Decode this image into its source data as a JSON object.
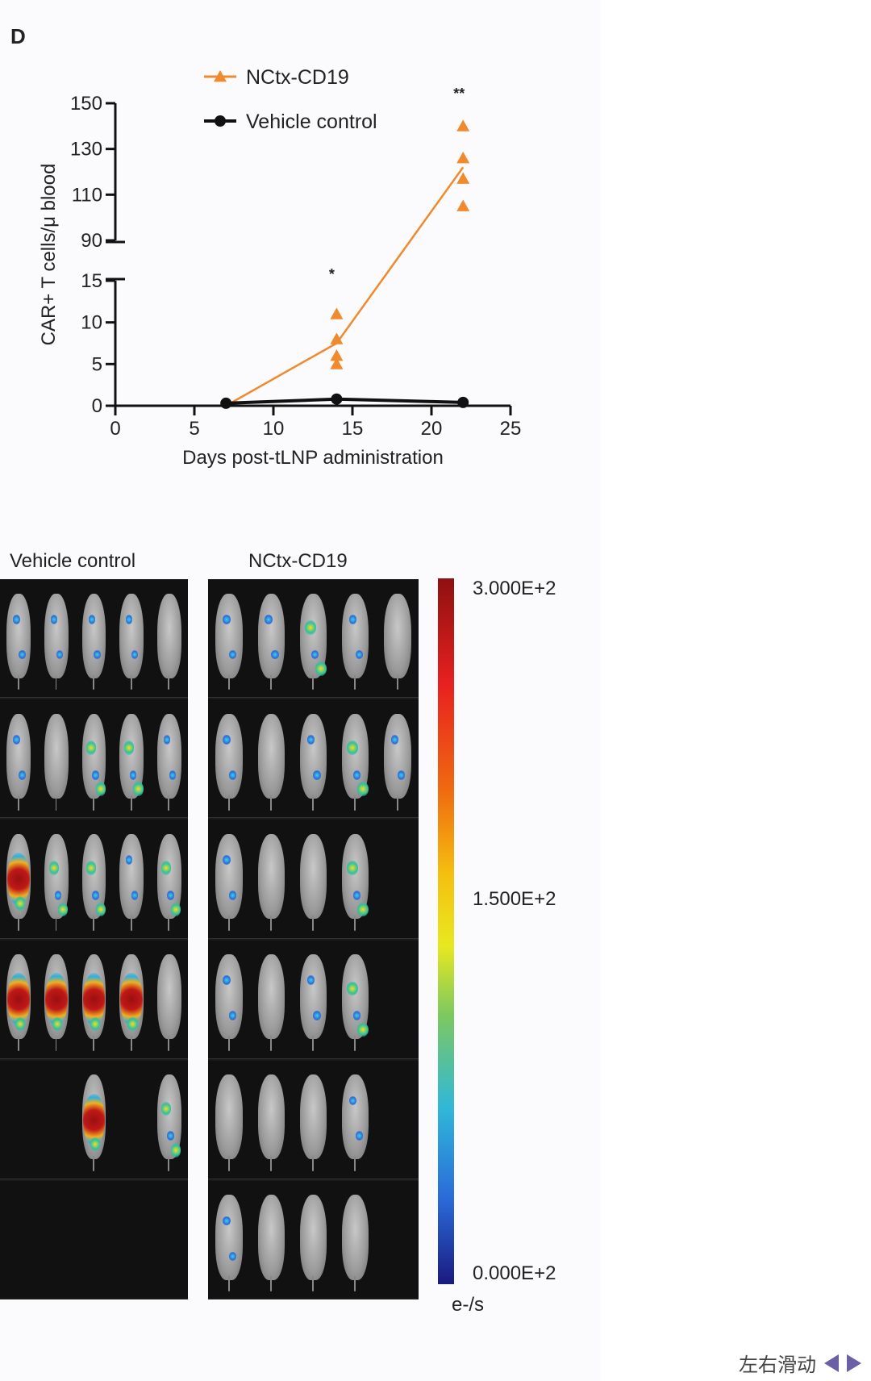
{
  "panel_letter": "D",
  "chart_data": {
    "type": "scatter",
    "xlabel": "Days post-tLNP administration",
    "ylabel": "CAR+ T cells/μ blood",
    "xlim": [
      0,
      25
    ],
    "x_ticks": [
      "0",
      "5",
      "10",
      "15",
      "20",
      "25"
    ],
    "y_ticks_lower": [
      "0",
      "5",
      "10",
      "15"
    ],
    "y_ticks_upper": [
      "90",
      "110",
      "130",
      "150"
    ],
    "y_axis_break": "between 15 and 90",
    "legend_position": "top",
    "series": [
      {
        "name": "NCtx-CD19",
        "color": "#f08a2c",
        "marker": "triangle",
        "points": [
          {
            "x": 14,
            "y": 11
          },
          {
            "x": 14,
            "y": 8
          },
          {
            "x": 14,
            "y": 6
          },
          {
            "x": 14,
            "y": 5
          },
          {
            "x": 22,
            "y": 140
          },
          {
            "x": 22,
            "y": 126
          },
          {
            "x": 22,
            "y": 117
          },
          {
            "x": 22,
            "y": 105
          }
        ],
        "mean_line": [
          {
            "x": 7,
            "y": 0
          },
          {
            "x": 14,
            "y": 7.5
          },
          {
            "x": 22,
            "y": 122
          }
        ]
      },
      {
        "name": "Vehicle control",
        "color": "#111111",
        "marker": "circle",
        "points": [
          {
            "x": 7,
            "y": 0.3
          },
          {
            "x": 14,
            "y": 0.8
          },
          {
            "x": 22,
            "y": 0.4
          }
        ],
        "mean_line": [
          {
            "x": 7,
            "y": 0.3
          },
          {
            "x": 14,
            "y": 0.8
          },
          {
            "x": 22,
            "y": 0.4
          }
        ]
      }
    ],
    "annotations": [
      {
        "text": "*",
        "x": 14
      },
      {
        "text": "**",
        "x": 22
      }
    ]
  },
  "imaging": {
    "group_labels": [
      "Vehicle control",
      "NCtx-CD19"
    ],
    "colorbar": {
      "max": "3.000E+2",
      "mid": "1.500E+2",
      "min": "0.000E+2",
      "unit": "e-/s"
    }
  },
  "scroll_hint": "左右滑动"
}
